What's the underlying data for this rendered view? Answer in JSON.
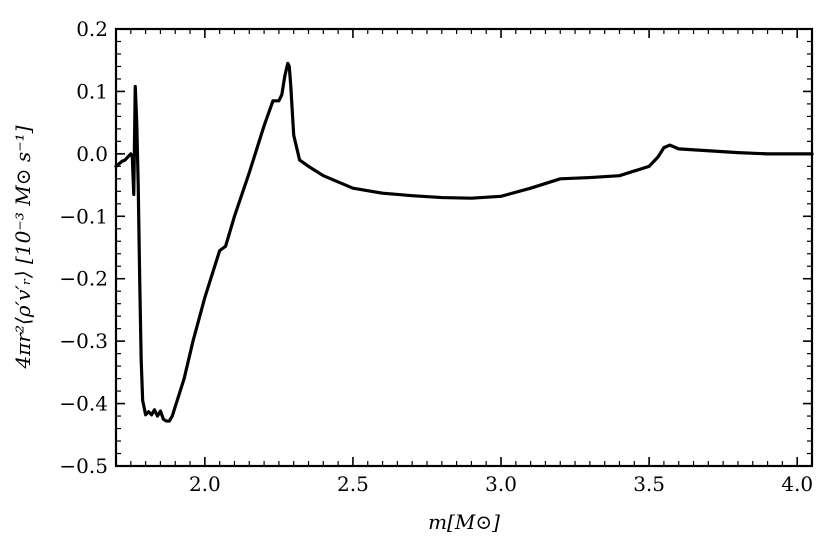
{
  "chart_data": {
    "type": "line",
    "title": "",
    "xlabel": "m[M⊙]",
    "ylabel": "4πr²⟨ρ′v′ᵣ⟩ [10⁻³ M⊙ s⁻¹]",
    "xlim": [
      1.7,
      4.05
    ],
    "ylim": [
      -0.5,
      0.2
    ],
    "x_ticks": [
      2.0,
      2.5,
      3.0,
      3.5,
      4.0
    ],
    "x_tick_labels": [
      "2.0",
      "2.5",
      "3.0",
      "3.5",
      "4.0"
    ],
    "y_ticks": [
      0.2,
      0.1,
      0.0,
      -0.1,
      -0.2,
      -0.3,
      -0.4,
      -0.5
    ],
    "y_tick_labels": [
      "0.2",
      "0.1",
      "0.0",
      "−0.1",
      "−0.2",
      "−0.3",
      "−0.4",
      "−0.5"
    ],
    "grid": false,
    "legend": "none",
    "line_color": "#000000",
    "series": [
      {
        "x": [
          1.7,
          1.72,
          1.73,
          1.75,
          1.755,
          1.76,
          1.765,
          1.77,
          1.775,
          1.78,
          1.785,
          1.79,
          1.8,
          1.81,
          1.82,
          1.83,
          1.84,
          1.85,
          1.86,
          1.87,
          1.88,
          1.89,
          1.9,
          1.93,
          1.96,
          2.0,
          2.05,
          2.07,
          2.1,
          2.15,
          2.2,
          2.23,
          2.25,
          2.26,
          2.27,
          2.28,
          2.285,
          2.29,
          2.3,
          2.32,
          2.35,
          2.4,
          2.5,
          2.6,
          2.7,
          2.8,
          2.9,
          3.0,
          3.1,
          3.2,
          3.3,
          3.4,
          3.5,
          3.53,
          3.55,
          3.57,
          3.58,
          3.6,
          3.7,
          3.8,
          3.9,
          4.0,
          4.05
        ],
        "y": [
          -0.02,
          -0.012,
          -0.01,
          0.0,
          -0.005,
          -0.065,
          0.108,
          0.05,
          -0.05,
          -0.2,
          -0.33,
          -0.395,
          -0.418,
          -0.413,
          -0.418,
          -0.41,
          -0.42,
          -0.412,
          -0.425,
          -0.428,
          -0.428,
          -0.42,
          -0.405,
          -0.36,
          -0.3,
          -0.23,
          -0.155,
          -0.148,
          -0.1,
          -0.03,
          0.045,
          0.085,
          0.085,
          0.095,
          0.125,
          0.145,
          0.14,
          0.11,
          0.03,
          -0.01,
          -0.02,
          -0.035,
          -0.055,
          -0.063,
          -0.067,
          -0.07,
          -0.071,
          -0.068,
          -0.055,
          -0.04,
          -0.038,
          -0.035,
          -0.02,
          -0.005,
          0.01,
          0.014,
          0.012,
          0.008,
          0.005,
          0.002,
          0.0,
          0.0,
          0.0
        ]
      }
    ]
  }
}
